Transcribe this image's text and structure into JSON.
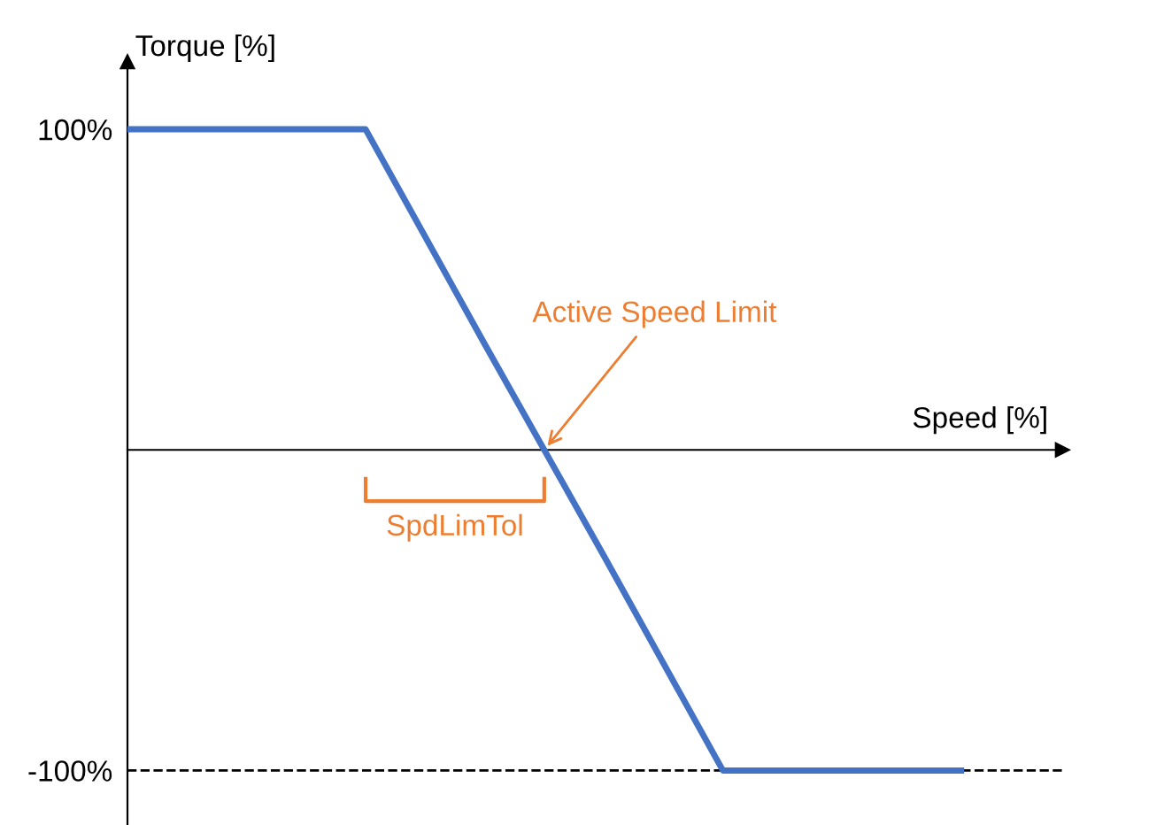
{
  "chart_data": {
    "type": "line",
    "xlabel": "Speed [%]",
    "ylabel": "Torque [%]",
    "categories": [
      null,
      null,
      null,
      null,
      null,
      null,
      null,
      null
    ],
    "series": [
      {
        "color": "#4472c4",
        "values": [
          100,
          100,
          100,
          33,
          -33,
          -100,
          -100,
          -100
        ]
      }
    ],
    "ylim": [
      -117,
      121
    ],
    "yticks": [
      {
        "value": 100,
        "label": "100%"
      },
      {
        "value": -100,
        "label": "-100%"
      }
    ],
    "tick_labels": "y",
    "grid": false,
    "legend": false,
    "marker": "none",
    "line_style": "solid",
    "ref_lines": [
      {
        "axis": "y",
        "value": -100,
        "color": "#000000",
        "line_style": "dashed"
      }
    ],
    "annotations": [
      "Active Speed Limit",
      "SpdLimTol"
    ]
  }
}
